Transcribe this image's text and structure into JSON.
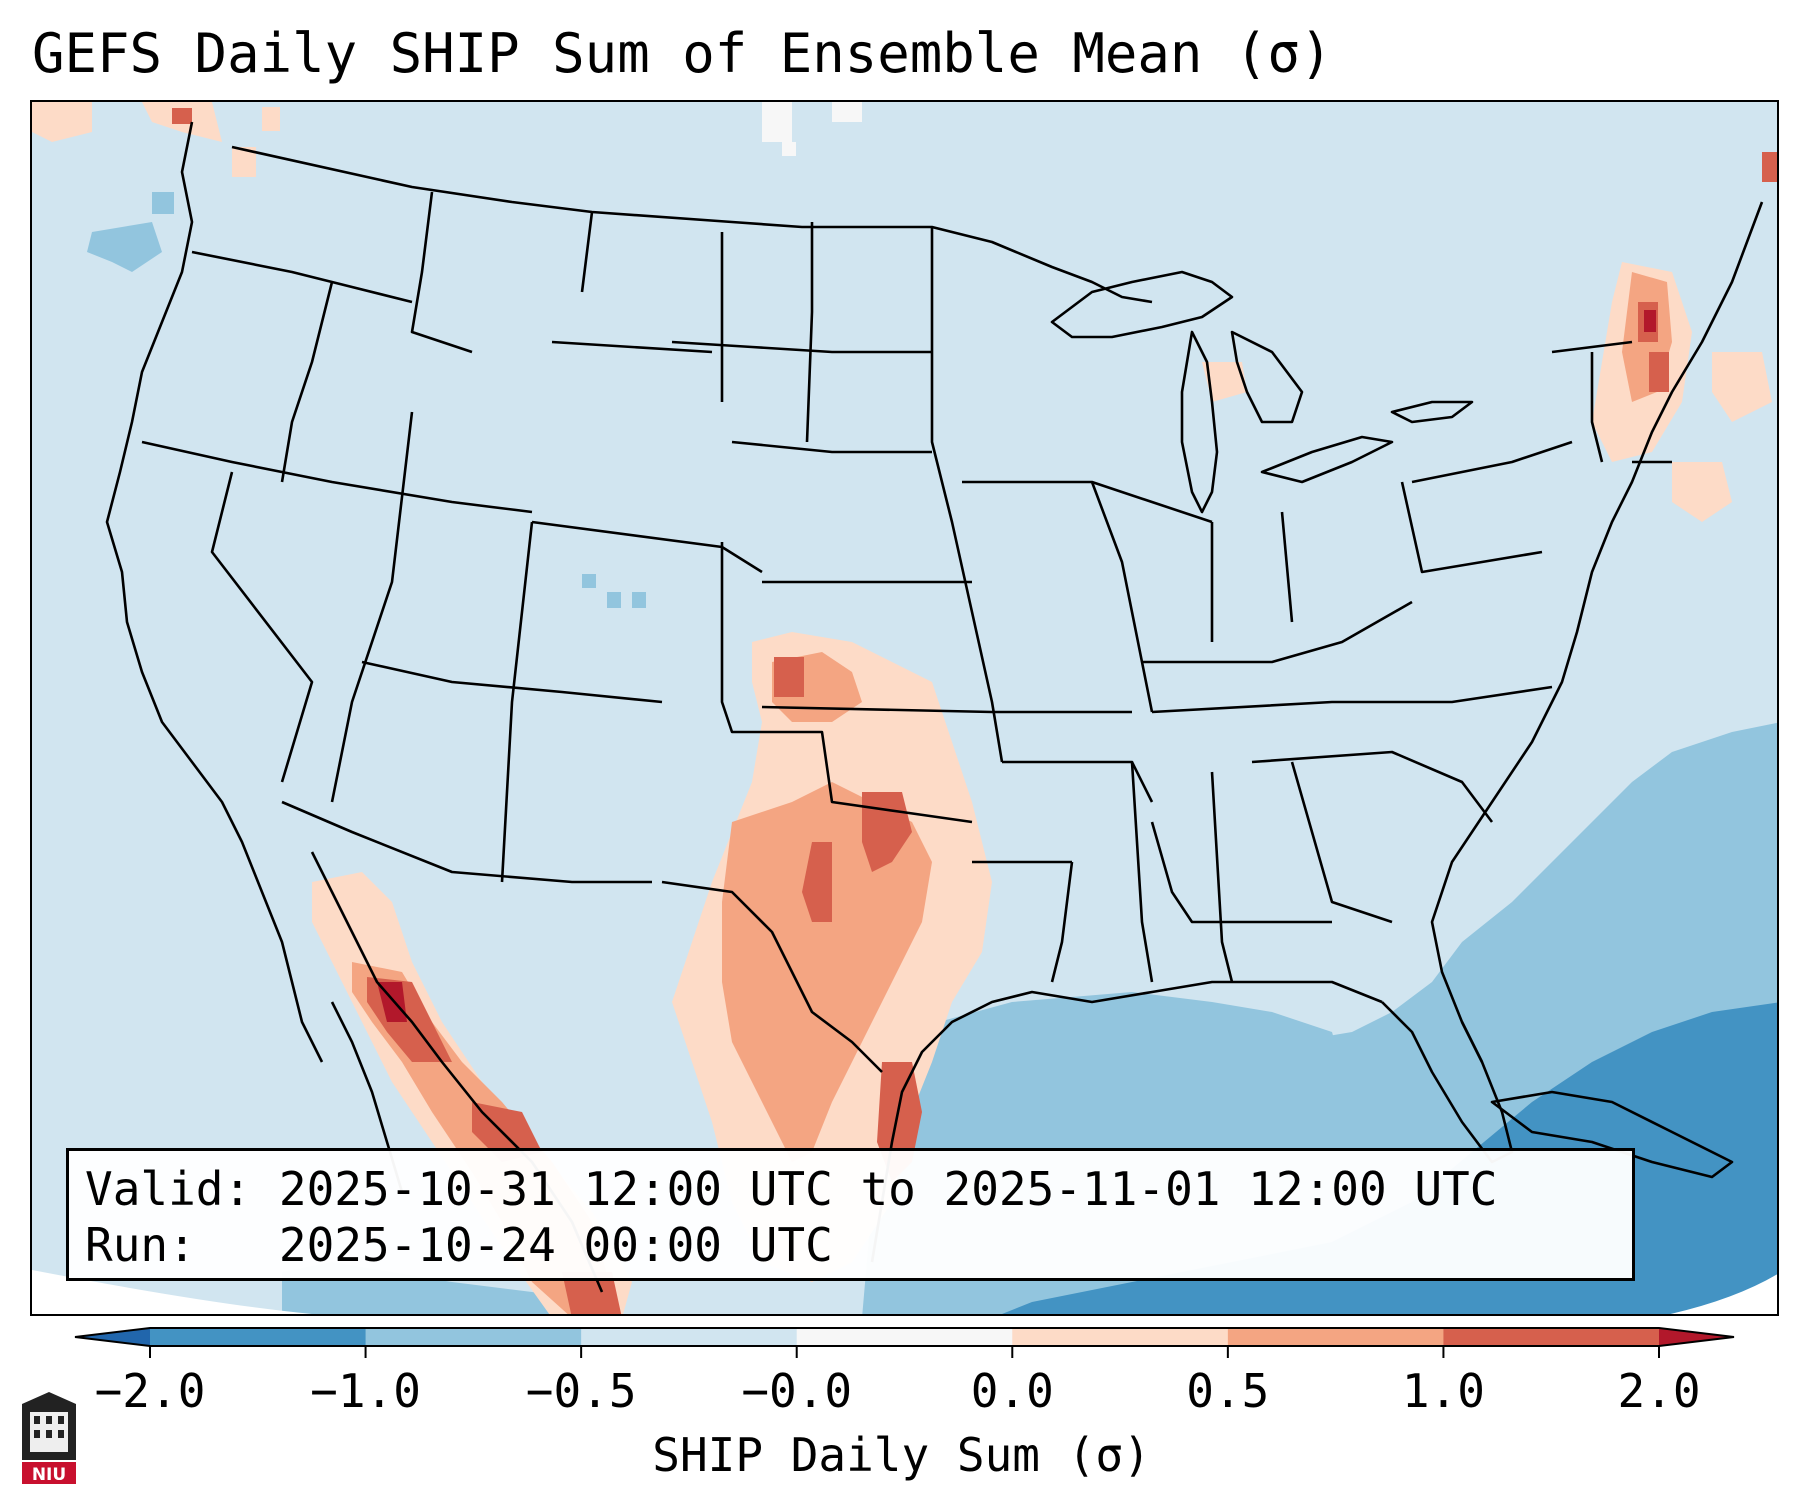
{
  "title": "GEFS Daily SHIP Sum of Ensemble Mean (σ)",
  "valid_label": "Valid:",
  "valid_value": "2025-10-31 12:00 UTC to 2025-11-01 12:00 UTC",
  "run_label": "Run:",
  "run_value": "2025-10-24 00:00 UTC",
  "colorbar": {
    "label": "SHIP Daily Sum (σ)",
    "ticks": [
      "−2.0",
      "−1.0",
      "−0.5",
      "−0.0",
      "0.0",
      "0.5",
      "1.0",
      "2.0"
    ],
    "colors": [
      "#4393c3",
      "#92c5de",
      "#d1e5f0",
      "#f7f7f7",
      "#fddbc7",
      "#f4a582",
      "#d6604d"
    ],
    "under_color": "#2166ac",
    "over_color": "#b2182b"
  },
  "logo": {
    "text": "NIU",
    "icon": "niu-logo-icon"
  }
}
